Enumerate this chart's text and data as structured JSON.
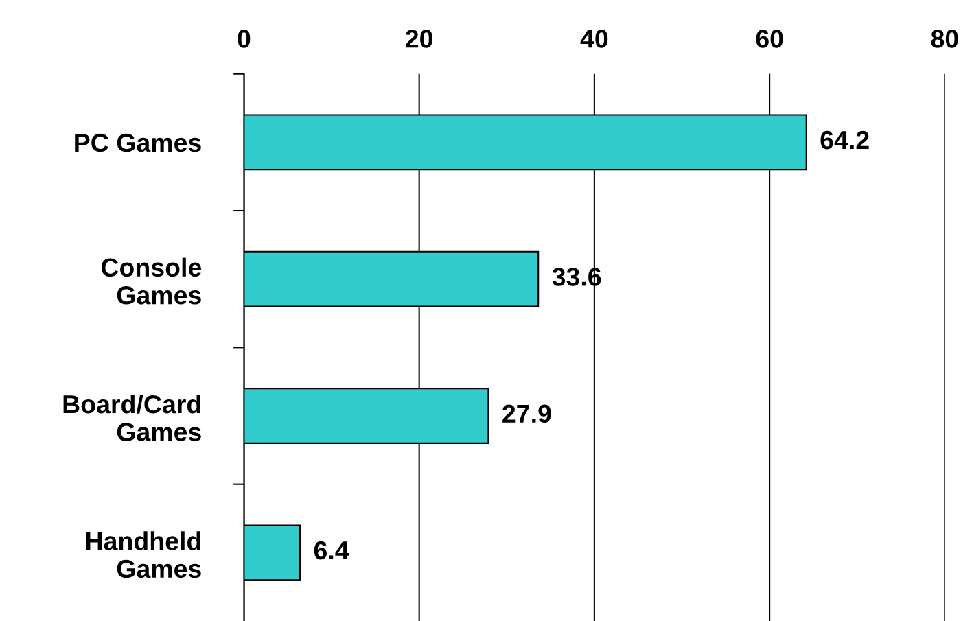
{
  "chart_data": {
    "type": "bar",
    "orientation": "horizontal",
    "categories": [
      "PC Games",
      "Console\nGames",
      "Board/Card\nGames",
      "Handheld\nGames"
    ],
    "values": [
      64.2,
      33.6,
      27.9,
      6.4
    ],
    "color": "#33cccc",
    "xlim": [
      0,
      80
    ],
    "xticks": [
      0,
      20,
      40,
      60,
      80
    ],
    "grid": "x",
    "data_labels": true
  }
}
